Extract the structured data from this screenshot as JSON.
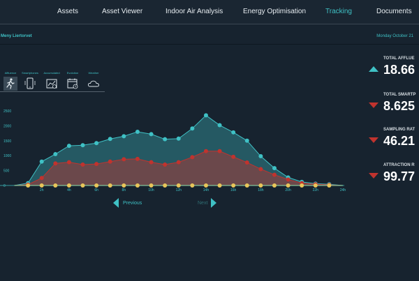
{
  "nav": {
    "items": [
      {
        "label": "Assets",
        "active": false
      },
      {
        "label": "Asset Viewer",
        "active": false
      },
      {
        "label": "Indoor Air Analysis",
        "active": false
      },
      {
        "label": "Energy Optimisation",
        "active": false
      },
      {
        "label": "Tracking",
        "active": true
      },
      {
        "label": "Documents",
        "active": false
      }
    ]
  },
  "header": {
    "location": "Meny Liertorvet",
    "date": "Monday October 21"
  },
  "tabs": [
    {
      "label": "Affluence",
      "icon": "walking-person-icon",
      "active": true
    },
    {
      "label": "Smartphones",
      "icon": "smartphone-icon",
      "active": false
    },
    {
      "label": "Accumulated",
      "icon": "accumulated-chart-icon",
      "active": false
    },
    {
      "label": "Evolution",
      "icon": "calendar-clock-icon",
      "active": false
    },
    {
      "label": "Weather",
      "icon": "cloud-icon",
      "active": false
    }
  ],
  "pager": {
    "previous": "Previous",
    "next": "Next"
  },
  "stats": [
    {
      "label": "TOTAL AFFLUE",
      "value": "18.66",
      "trend": "up"
    },
    {
      "label": "TOTAL SMARTP",
      "value": "8.625",
      "trend": "down"
    },
    {
      "label": "SAMPLING RAT",
      "value": "46.21",
      "trend": "down"
    },
    {
      "label": "ATTRACTION R",
      "value": "99.77",
      "trend": "down"
    }
  ],
  "colors": {
    "accent": "#3fc1c5",
    "red": "#c0332e",
    "yellow": "#e8c55a",
    "background": "#17232f"
  },
  "chart_data": {
    "type": "area",
    "x": [
      0,
      1,
      2,
      3,
      4,
      5,
      6,
      7,
      8,
      9,
      10,
      11,
      12,
      13,
      14,
      15,
      16,
      17,
      18,
      19,
      20,
      21,
      22,
      23,
      24
    ],
    "x_tick_labels": [
      "2h",
      "4h",
      "6h",
      "8h",
      "10h",
      "12h",
      "14h",
      "16h",
      "18h",
      "20h",
      "22h",
      "24h"
    ],
    "y_tick_labels": [
      "0",
      "500",
      "1000",
      "1500",
      "2000",
      "2500"
    ],
    "ylim": [
      0,
      2500
    ],
    "grid": false,
    "series": [
      {
        "color": "#3fc1c5",
        "values": [
          0,
          80,
          800,
          1050,
          1330,
          1350,
          1420,
          1560,
          1650,
          1800,
          1720,
          1550,
          1570,
          1910,
          2350,
          2020,
          1780,
          1500,
          980,
          580,
          270,
          120,
          60,
          40,
          0
        ]
      },
      {
        "color": "#c0332e",
        "values": [
          0,
          30,
          250,
          740,
          780,
          700,
          720,
          800,
          880,
          890,
          780,
          700,
          780,
          950,
          1150,
          1150,
          960,
          770,
          550,
          360,
          200,
          80,
          40,
          20,
          0
        ]
      },
      {
        "color": "#e8c55a",
        "values": [
          0,
          0,
          0,
          0,
          0,
          0,
          0,
          0,
          0,
          0,
          0,
          0,
          0,
          0,
          0,
          0,
          0,
          0,
          0,
          0,
          0,
          0,
          0,
          0,
          0
        ]
      }
    ]
  }
}
